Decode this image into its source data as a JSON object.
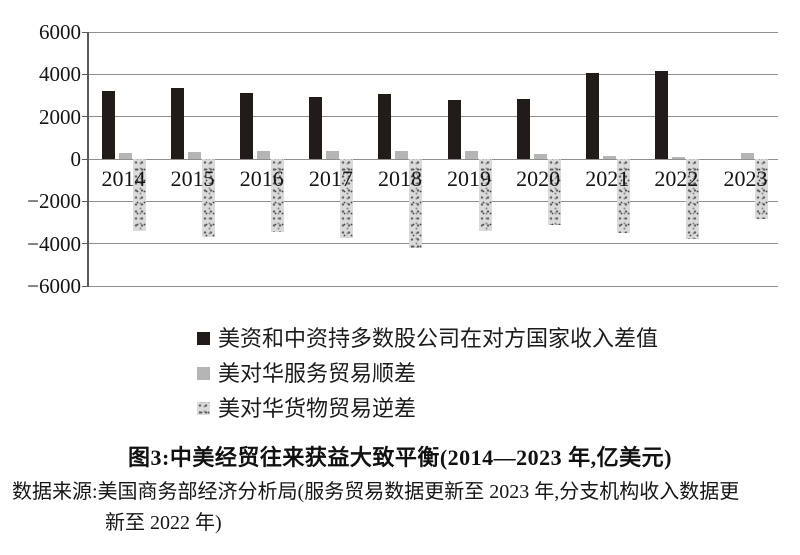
{
  "figure": {
    "title": "图3:中美经贸往来获益大致平衡(2014—2023 年,亿美元)",
    "source_line1": "数据来源:美国商务部经济分析局(服务贸易数据更新至 2023 年,分支机构收入数据更",
    "source_line2": "新至 2022 年)"
  },
  "chart_data": {
    "type": "bar",
    "categories": [
      "2014",
      "2015",
      "2016",
      "2017",
      "2018",
      "2019",
      "2020",
      "2021",
      "2022",
      "2023"
    ],
    "series": [
      {
        "name": "美资和中资持多数股公司在对方国家收入差值",
        "style": "black",
        "color": "#221c19",
        "values": [
          3200,
          3350,
          3100,
          2950,
          3050,
          2800,
          2850,
          4050,
          4150,
          null
        ]
      },
      {
        "name": "美对华服务贸易顺差",
        "style": "gray",
        "color": "#b5b5b5",
        "values": [
          270,
          310,
          370,
          390,
          380,
          360,
          230,
          140,
          90,
          280
        ]
      },
      {
        "name": "美对华货物贸易逆差",
        "style": "speckled",
        "color": "#dadada",
        "values": [
          -3400,
          -3700,
          -3450,
          -3750,
          -4200,
          -3400,
          -3100,
          -3500,
          -3800,
          -2850
        ]
      }
    ],
    "ylim": [
      -6000,
      6000
    ],
    "y_ticks": [
      6000,
      4000,
      2000,
      0,
      -2000,
      -4000,
      -6000
    ],
    "y_tick_labels": [
      "6000",
      "4000",
      "2000",
      "0",
      "−2000",
      "−4000",
      "−6000"
    ],
    "grid": true,
    "legend_position": "below",
    "xlabel": "",
    "ylabel": ""
  }
}
